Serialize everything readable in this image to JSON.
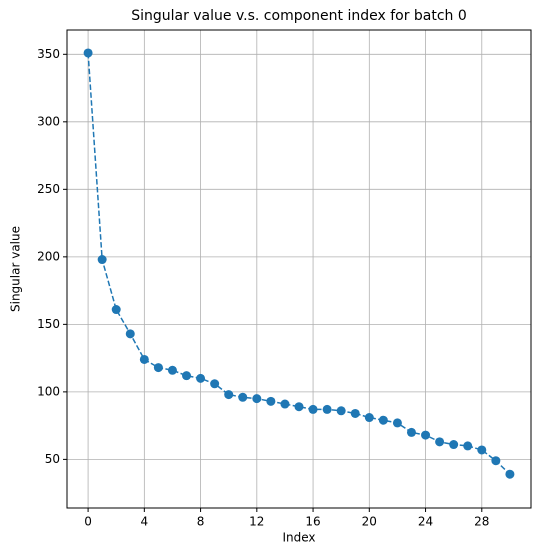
{
  "chart_data": {
    "type": "line",
    "title": "Singular value v.s. component index for batch 0",
    "x_label": "Index",
    "y_label": "Singular value",
    "x": [
      0,
      1,
      2,
      3,
      4,
      5,
      6,
      7,
      8,
      9,
      10,
      11,
      12,
      13,
      14,
      15,
      16,
      17,
      18,
      19,
      20,
      21,
      22,
      23,
      24,
      25,
      26,
      27,
      28,
      29,
      30
    ],
    "series": [
      {
        "name": "Singular value",
        "color": "#1f77b4",
        "values": [
          351,
          198,
          161,
          143,
          124,
          118,
          116,
          112,
          110,
          106,
          98,
          96,
          95,
          93,
          91,
          89,
          87,
          87,
          86,
          84,
          81,
          79,
          77,
          70,
          68,
          63,
          61,
          60,
          57,
          49,
          39
        ]
      }
    ],
    "xlim": [
      -1.5,
      31.5
    ],
    "xticks": [
      0,
      4,
      8,
      12,
      16,
      20,
      24,
      28
    ],
    "ylim": [
      14,
      368
    ],
    "yticks": [
      50,
      100,
      150,
      200,
      250,
      300,
      350
    ],
    "grid": true,
    "line_style": "dashed",
    "marker": "circle"
  }
}
